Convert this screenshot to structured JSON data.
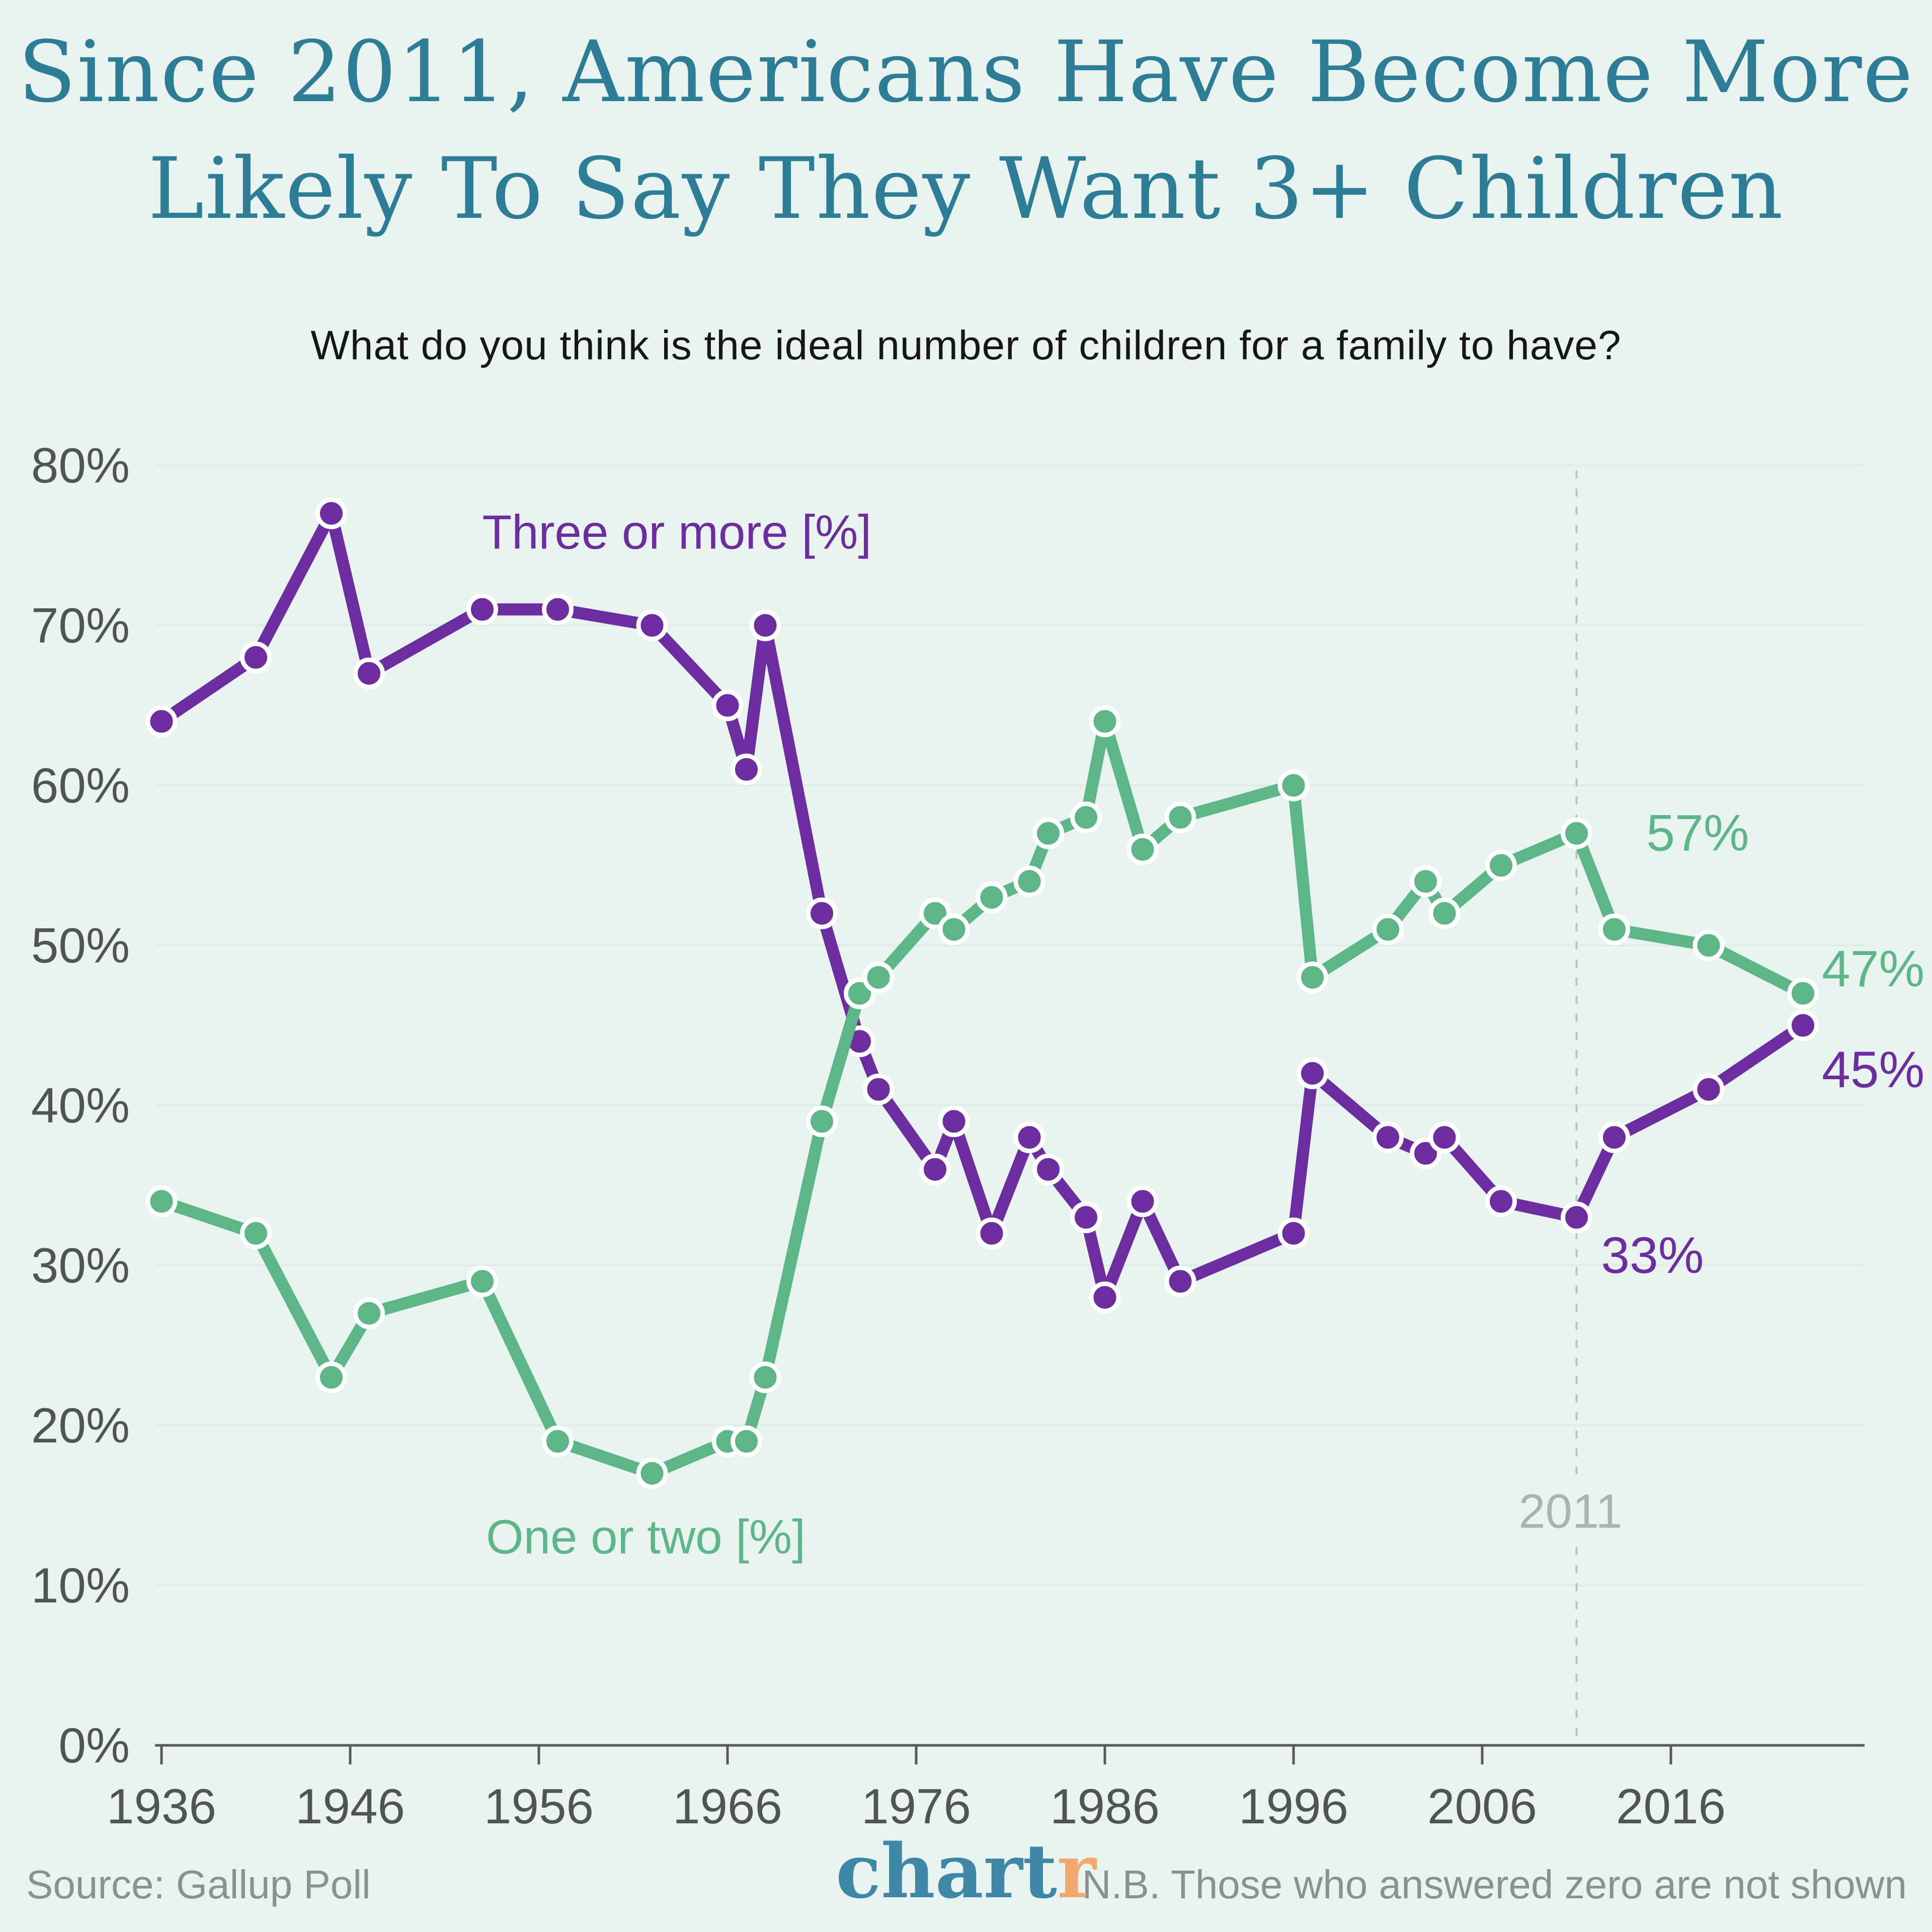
{
  "title": {
    "line1": "Since 2011, Americans Have Become More",
    "line2": "Likely To Say They Want 3+ Children"
  },
  "subtitle": "What do you think is the ideal number of children for a family to have?",
  "footer": {
    "source": "Source: Gallup Poll",
    "logo_part1": "chart",
    "logo_part2": "r",
    "note": "N.B. Those who answered zero are not shown"
  },
  "colors": {
    "background": "#e9f4f0",
    "gridline": "#dcebe6",
    "axis": "#55595a",
    "tick_label": "#4f5454",
    "purple": "#6c2da0",
    "green": "#5cb687",
    "muted": "#a9b4b2",
    "dashed_line": "#b9c3c0",
    "title_teal": "#2e7d97",
    "footer_gray": "#8a9191",
    "logo_teal": "#3e87a6",
    "logo_orange": "#f2a86e",
    "dot_ring": "#ffffff"
  },
  "chart_data": {
    "type": "line",
    "title": "Since 2011, Americans Have Become More Likely To Say They Want 3+ Children",
    "subtitle": "What do you think is the ideal number of children for a family to have?",
    "xlabel": "",
    "ylabel": "",
    "ylim": [
      0,
      80
    ],
    "xlim": [
      1935.5,
      2026.5
    ],
    "grid": true,
    "legend_position": "inline-labels",
    "x": [
      1936,
      1941,
      1945,
      1947,
      1953,
      1957,
      1962,
      1966,
      1967,
      1968,
      1971,
      1973,
      1974,
      1977,
      1978,
      1980,
      1982,
      1983,
      1985,
      1986,
      1988,
      1990,
      1996,
      1997,
      2001,
      2003,
      2004,
      2007,
      2011,
      2013,
      2018,
      2023
    ],
    "series": [
      {
        "name": "Three or more [%]",
        "color": "#6c2da0",
        "values": [
          64,
          68,
          77,
          67,
          71,
          71,
          70,
          65,
          61,
          70,
          52,
          44,
          41,
          36,
          39,
          32,
          38,
          36,
          33,
          28,
          34,
          29,
          32,
          42,
          38,
          37,
          38,
          34,
          33,
          38,
          41,
          45
        ]
      },
      {
        "name": "One or two [%]",
        "color": "#5cb687",
        "values": [
          34,
          32,
          23,
          27,
          29,
          19,
          17,
          19,
          19,
          23,
          39,
          47,
          48,
          52,
          51,
          53,
          54,
          57,
          58,
          64,
          56,
          58,
          60,
          48,
          51,
          54,
          52,
          55,
          57,
          51,
          50,
          47
        ]
      }
    ],
    "y_ticks": [
      0,
      10,
      20,
      30,
      40,
      50,
      60,
      70,
      80
    ],
    "y_tick_suffix": "%",
    "x_ticks": [
      1936,
      1946,
      1956,
      1966,
      1976,
      1986,
      1996,
      2006,
      2016
    ],
    "series_labels": [
      {
        "text": "Three or more [%]",
        "x_year": 1953.0,
        "y_pct": 75.8,
        "color": "#6c2da0",
        "anchor": "start"
      },
      {
        "text": "One or two [%]",
        "x_year": 1953.2,
        "y_pct": 13.0,
        "color": "#5cb687",
        "anchor": "start"
      }
    ],
    "point_labels": [
      {
        "text": "57%",
        "x_year": 2014.7,
        "y_pct": 57.0,
        "color": "#5cb687",
        "anchor": "start"
      },
      {
        "text": "33%",
        "x_year": 2012.3,
        "y_pct": 30.6,
        "color": "#6c2da0",
        "anchor": "start"
      },
      {
        "text": "47%",
        "x_year": 2024.0,
        "y_pct": 48.5,
        "color": "#5cb687",
        "anchor": "start"
      },
      {
        "text": "45%",
        "x_year": 2024.0,
        "y_pct": 42.2,
        "color": "#6c2da0",
        "anchor": "start"
      }
    ],
    "vline": {
      "x_year": 2011,
      "label": "2011",
      "label_y_pct": 14.6,
      "color": "#b9c3c0",
      "label_color": "#a9b4b2"
    }
  }
}
